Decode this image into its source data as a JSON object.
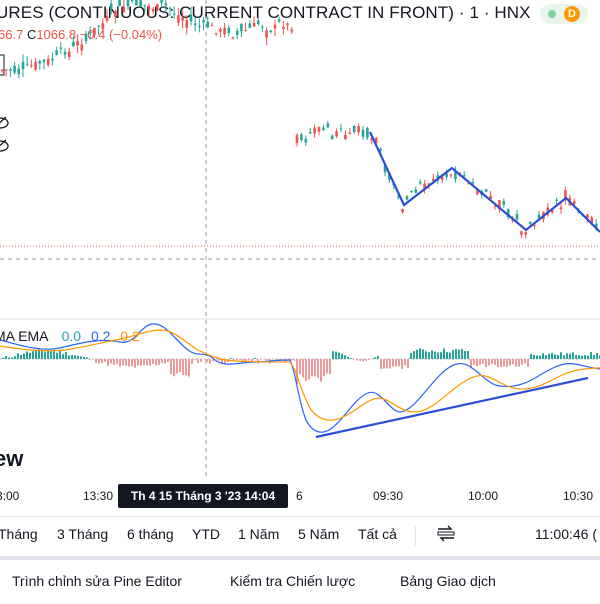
{
  "header": {
    "symbol_title": "URES (CONTINUOUS: CURRENT CONTRACT IN FRONT) · 1 · HNX",
    "badge_letter": "D"
  },
  "ohlc": {
    "o_value_partial": "66.7",
    "c_label": "C",
    "c_value": "1066.8",
    "change": "−0.4 (−0.04%)"
  },
  "indicator": {
    "name": "MA EMA",
    "values": [
      "0.0",
      "0.2",
      "0.2"
    ]
  },
  "watermark": {
    "text": "ew"
  },
  "time_axis": {
    "labels": [
      "3:00",
      "13:30",
      "6",
      "09:30",
      "10:00",
      "10:30"
    ],
    "crosshair_label": "Th 4 15 Tháng 3 '23   14:04"
  },
  "range_buttons": [
    "Tháng",
    "3 Tháng",
    "6 tháng",
    "YTD",
    "1 Năm",
    "5 Năm",
    "Tất cả"
  ],
  "clock": "11:00:46 (",
  "bottom_tabs": [
    "Trình chỉnh sửa Pine Editor",
    "Kiểm tra Chiến lược",
    "Bảng Giao dịch"
  ],
  "colors": {
    "up": "#26a69a",
    "down": "#ef5350",
    "macd_line": "#2962ff",
    "signal_line": "#ff9800",
    "trendline": "#2a4fd6"
  }
}
